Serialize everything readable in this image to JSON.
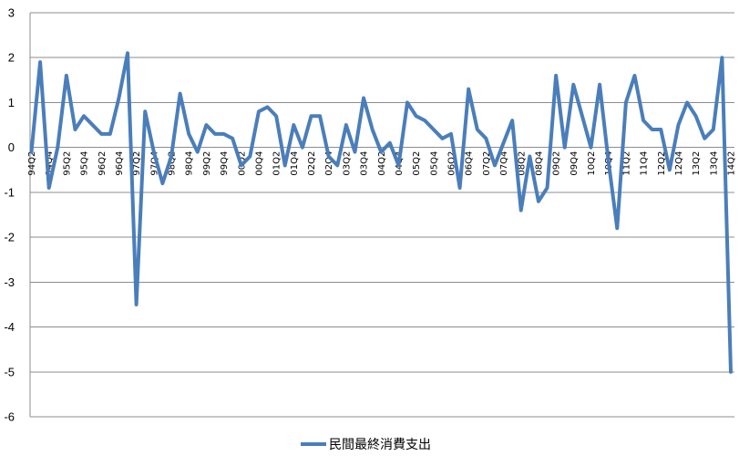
{
  "chart_data": {
    "type": "line",
    "title": "",
    "xlabel": "",
    "ylabel": "",
    "ylim": [
      -6,
      3
    ],
    "yticks": [
      3,
      2,
      1,
      0,
      -1,
      -2,
      -3,
      -4,
      -5,
      -6
    ],
    "grid": true,
    "legend_position": "bottom",
    "series": [
      {
        "name": "民間最終消費支出",
        "color": "#4a7ebb",
        "values": [
          -0.1,
          1.9,
          -0.9,
          0.0,
          1.6,
          0.4,
          0.7,
          0.5,
          0.3,
          0.3,
          1.1,
          2.1,
          -3.5,
          0.8,
          -0.1,
          -0.8,
          -0.2,
          1.2,
          0.3,
          -0.1,
          0.5,
          0.3,
          0.3,
          0.2,
          -0.4,
          -0.2,
          0.8,
          0.9,
          0.7,
          -0.4,
          0.5,
          0.0,
          0.7,
          0.7,
          -0.2,
          -0.4,
          0.5,
          -0.1,
          1.1,
          0.4,
          -0.1,
          0.1,
          -0.4,
          1.0,
          0.7,
          0.6,
          0.4,
          0.2,
          0.3,
          -0.9,
          1.3,
          0.4,
          0.2,
          -0.4,
          0.1,
          0.6,
          -1.4,
          -0.2,
          -1.2,
          -0.9,
          1.6,
          0.0,
          1.4,
          0.7,
          0.0,
          1.4,
          -0.3,
          -1.8,
          1.0,
          1.6,
          0.6,
          0.4,
          0.4,
          -0.5,
          0.5,
          1.0,
          0.7,
          0.2,
          0.4,
          2.0,
          -5.0
        ]
      }
    ],
    "categories": [
      "94Q2",
      "94Q3",
      "94Q4",
      "95Q1",
      "95Q2",
      "95Q3",
      "95Q4",
      "96Q1",
      "96Q2",
      "96Q3",
      "96Q4",
      "97Q1",
      "97Q2",
      "97Q3",
      "97Q4",
      "98Q1",
      "98Q2",
      "98Q3",
      "98Q4",
      "99Q1",
      "99Q2",
      "99Q3",
      "99Q4",
      "00Q1",
      "00Q2",
      "00Q3",
      "00Q4",
      "01Q1",
      "01Q2",
      "01Q3",
      "01Q4",
      "02Q1",
      "02Q2",
      "02Q3",
      "02Q4",
      "03Q1",
      "03Q2",
      "03Q3",
      "03Q4",
      "04Q1",
      "04Q2",
      "04Q3",
      "04Q4",
      "05Q1",
      "05Q2",
      "05Q3",
      "05Q4",
      "06Q1",
      "06Q2",
      "06Q3",
      "06Q4",
      "07Q1",
      "07Q2",
      "07Q3",
      "07Q4",
      "08Q1",
      "08Q2",
      "08Q3",
      "08Q4",
      "09Q1",
      "09Q2",
      "09Q3",
      "09Q4",
      "10Q1",
      "10Q2",
      "10Q3",
      "10Q4",
      "11Q1",
      "11Q2",
      "11Q3",
      "11Q4",
      "12Q1",
      "12Q2",
      "12Q3",
      "12Q4",
      "13Q1",
      "13Q2",
      "13Q3",
      "13Q4",
      "14Q1",
      "14Q2"
    ],
    "tick_labels": [
      "94Q2",
      "94Q4",
      "95Q2",
      "95Q4",
      "96Q2",
      "96Q4",
      "97Q2",
      "97Q4",
      "98Q2",
      "98Q4",
      "99Q2",
      "99Q4",
      "00Q2",
      "00Q4",
      "01Q2",
      "01Q4",
      "02Q2",
      "02Q4",
      "03Q2",
      "03Q4",
      "04Q2",
      "04Q4",
      "05Q2",
      "05Q4",
      "06Q2",
      "06Q4",
      "07Q2",
      "07Q4",
      "08Q2",
      "08Q4",
      "09Q2",
      "09Q4",
      "10Q2",
      "10Q4",
      "11Q2",
      "11Q4",
      "12Q2",
      "12Q4",
      "13Q2",
      "13Q4",
      "14Q2"
    ]
  }
}
